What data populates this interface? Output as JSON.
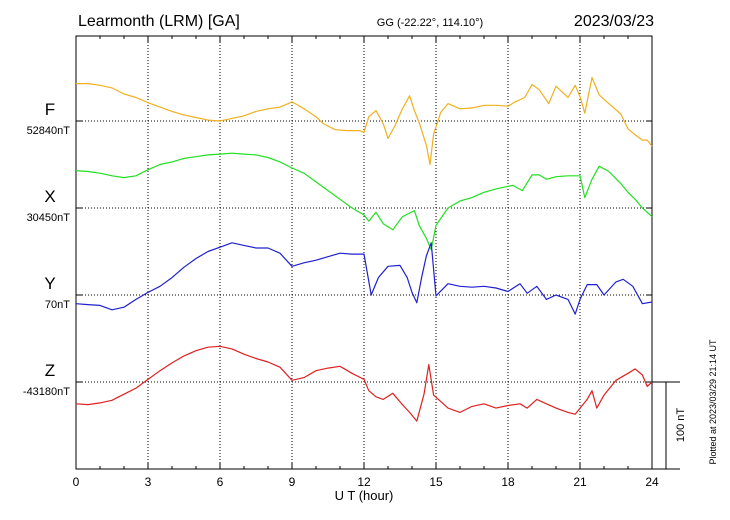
{
  "header": {
    "station": "Learmonth (LRM)  [GA]",
    "coords": "GG (-22.22°, 114.10°)",
    "date": "2023/03/23"
  },
  "footer": {
    "xlabel": "U T (hour)",
    "plotted": "Plotted at 2023/03/29 21:14 UT"
  },
  "scale": {
    "label": "100 nT"
  },
  "chart_data": {
    "type": "line",
    "xlabel": "U T (hour)",
    "xlim": [
      0,
      24
    ],
    "xticks": [
      0,
      3,
      6,
      9,
      12,
      15,
      18,
      21,
      24
    ],
    "scale_bar_nT": 100,
    "grid": true,
    "series": [
      {
        "name": "F",
        "baseline_label": "52840nT",
        "color": "#f0b020",
        "points": [
          [
            0,
            43
          ],
          [
            0.5,
            43
          ],
          [
            1,
            41
          ],
          [
            1.5,
            38
          ],
          [
            2,
            31
          ],
          [
            2.5,
            27
          ],
          [
            3,
            21
          ],
          [
            3.5,
            16
          ],
          [
            4,
            11
          ],
          [
            4.5,
            7
          ],
          [
            5,
            4
          ],
          [
            5.5,
            1
          ],
          [
            6,
            0
          ],
          [
            6.5,
            3
          ],
          [
            7,
            6
          ],
          [
            7.5,
            11
          ],
          [
            8,
            14
          ],
          [
            8.5,
            16
          ],
          [
            9,
            22
          ],
          [
            9.2,
            19
          ],
          [
            9.5,
            14
          ],
          [
            10,
            5
          ],
          [
            10.3,
            -3
          ],
          [
            10.8,
            -10
          ],
          [
            11.3,
            -11
          ],
          [
            11.8,
            -11
          ],
          [
            12,
            -13
          ],
          [
            12.2,
            5
          ],
          [
            12.5,
            12
          ],
          [
            12.8,
            -3
          ],
          [
            13,
            -20
          ],
          [
            13.3,
            -5
          ],
          [
            13.6,
            14
          ],
          [
            13.9,
            29
          ],
          [
            14.1,
            12
          ],
          [
            14.3,
            -2
          ],
          [
            14.6,
            -28
          ],
          [
            14.75,
            -50
          ],
          [
            14.9,
            -15
          ],
          [
            15.2,
            10
          ],
          [
            15.5,
            20
          ],
          [
            16,
            14
          ],
          [
            16.5,
            15
          ],
          [
            17,
            18
          ],
          [
            17.5,
            18
          ],
          [
            18,
            17
          ],
          [
            18.3,
            22
          ],
          [
            18.7,
            27
          ],
          [
            19,
            42
          ],
          [
            19.3,
            36
          ],
          [
            19.7,
            20
          ],
          [
            20,
            40
          ],
          [
            20.5,
            27
          ],
          [
            20.8,
            41
          ],
          [
            21,
            28
          ],
          [
            21.2,
            9
          ],
          [
            21.5,
            50
          ],
          [
            21.8,
            30
          ],
          [
            22.2,
            20
          ],
          [
            22.7,
            8
          ],
          [
            23,
            -9
          ],
          [
            23.3,
            -16
          ],
          [
            23.6,
            -22
          ],
          [
            23.8,
            -22
          ],
          [
            24,
            -29
          ]
        ]
      },
      {
        "name": "X",
        "baseline_label": "30450nT",
        "color": "#20e020",
        "points": [
          [
            0,
            43
          ],
          [
            0.5,
            42
          ],
          [
            1,
            40
          ],
          [
            1.5,
            37
          ],
          [
            2,
            35
          ],
          [
            2.5,
            37
          ],
          [
            3,
            44
          ],
          [
            3.5,
            50
          ],
          [
            4,
            53
          ],
          [
            4.5,
            57
          ],
          [
            5,
            59
          ],
          [
            5.5,
            61
          ],
          [
            6,
            62
          ],
          [
            6.5,
            63
          ],
          [
            7,
            62
          ],
          [
            7.5,
            61
          ],
          [
            8,
            58
          ],
          [
            8.5,
            53
          ],
          [
            9,
            46
          ],
          [
            9.5,
            40
          ],
          [
            10,
            30
          ],
          [
            10.5,
            20
          ],
          [
            11,
            10
          ],
          [
            11.5,
            0
          ],
          [
            12,
            -8
          ],
          [
            12.2,
            -15
          ],
          [
            12.5,
            -5
          ],
          [
            12.8,
            -18
          ],
          [
            13.2,
            -25
          ],
          [
            13.6,
            -10
          ],
          [
            14.1,
            -3
          ],
          [
            14.3,
            -20
          ],
          [
            14.6,
            -35
          ],
          [
            14.8,
            -48
          ],
          [
            15,
            -20
          ],
          [
            15.5,
            0
          ],
          [
            16,
            8
          ],
          [
            16.5,
            12
          ],
          [
            17,
            18
          ],
          [
            17.5,
            22
          ],
          [
            18,
            25
          ],
          [
            18.2,
            26
          ],
          [
            18.6,
            20
          ],
          [
            19,
            38
          ],
          [
            19.3,
            38
          ],
          [
            19.6,
            33
          ],
          [
            20,
            36
          ],
          [
            20.5,
            37
          ],
          [
            21,
            37
          ],
          [
            21.2,
            12
          ],
          [
            21.5,
            33
          ],
          [
            21.8,
            48
          ],
          [
            22.2,
            42
          ],
          [
            22.7,
            28
          ],
          [
            23,
            18
          ],
          [
            23.3,
            10
          ],
          [
            23.6,
            0
          ],
          [
            23.8,
            -5
          ],
          [
            24,
            -10
          ]
        ]
      },
      {
        "name": "Y",
        "baseline_label": "70nT",
        "color": "#2020d0",
        "points": [
          [
            0,
            -10
          ],
          [
            0.5,
            -11
          ],
          [
            1,
            -12
          ],
          [
            1.5,
            -17
          ],
          [
            2,
            -14
          ],
          [
            2.5,
            -5
          ],
          [
            3,
            3
          ],
          [
            3.5,
            10
          ],
          [
            4,
            20
          ],
          [
            4.5,
            32
          ],
          [
            5,
            42
          ],
          [
            5.5,
            50
          ],
          [
            6,
            55
          ],
          [
            6.5,
            60
          ],
          [
            7,
            57
          ],
          [
            7.5,
            54
          ],
          [
            8,
            54
          ],
          [
            8.5,
            48
          ],
          [
            9,
            33
          ],
          [
            9.5,
            37
          ],
          [
            10,
            40
          ],
          [
            10.5,
            44
          ],
          [
            11,
            48
          ],
          [
            11.5,
            47
          ],
          [
            12,
            47
          ],
          [
            12.3,
            0
          ],
          [
            12.6,
            20
          ],
          [
            13,
            33
          ],
          [
            13.5,
            34
          ],
          [
            13.8,
            20
          ],
          [
            14,
            3
          ],
          [
            14.2,
            -9
          ],
          [
            14.4,
            20
          ],
          [
            14.6,
            45
          ],
          [
            14.8,
            60
          ],
          [
            15,
            -1
          ],
          [
            15.5,
            13
          ],
          [
            16,
            10
          ],
          [
            16.5,
            9
          ],
          [
            17,
            10
          ],
          [
            17.5,
            8
          ],
          [
            18,
            4
          ],
          [
            18.5,
            13
          ],
          [
            18.8,
            2
          ],
          [
            19.2,
            10
          ],
          [
            19.6,
            -5
          ],
          [
            20,
            0
          ],
          [
            20.5,
            -5
          ],
          [
            20.8,
            -22
          ],
          [
            21,
            -5
          ],
          [
            21.3,
            12
          ],
          [
            21.7,
            12
          ],
          [
            22,
            0
          ],
          [
            22.5,
            15
          ],
          [
            22.8,
            18
          ],
          [
            23.2,
            10
          ],
          [
            23.6,
            -10
          ],
          [
            24,
            -8
          ]
        ]
      },
      {
        "name": "Z",
        "baseline_label": "-43180nT",
        "color": "#e02020",
        "points": [
          [
            0,
            -25
          ],
          [
            0.5,
            -26
          ],
          [
            1,
            -24
          ],
          [
            1.5,
            -21
          ],
          [
            2,
            -14
          ],
          [
            2.5,
            -7
          ],
          [
            3,
            3
          ],
          [
            3.5,
            13
          ],
          [
            4,
            22
          ],
          [
            4.5,
            30
          ],
          [
            5,
            36
          ],
          [
            5.5,
            40
          ],
          [
            6,
            41
          ],
          [
            6.5,
            38
          ],
          [
            7,
            32
          ],
          [
            7.5,
            27
          ],
          [
            8,
            23
          ],
          [
            8.5,
            17
          ],
          [
            9,
            2
          ],
          [
            9.5,
            5
          ],
          [
            10,
            13
          ],
          [
            10.5,
            16
          ],
          [
            11,
            18
          ],
          [
            11.5,
            10
          ],
          [
            12,
            3
          ],
          [
            12.2,
            -10
          ],
          [
            12.5,
            -17
          ],
          [
            12.8,
            -20
          ],
          [
            13.2,
            -13
          ],
          [
            13.6,
            -26
          ],
          [
            13.9,
            -35
          ],
          [
            14.2,
            -45
          ],
          [
            14.5,
            -14
          ],
          [
            14.7,
            20
          ],
          [
            14.9,
            -15
          ],
          [
            15.5,
            -30
          ],
          [
            16,
            -35
          ],
          [
            16.5,
            -28
          ],
          [
            17,
            -25
          ],
          [
            17.5,
            -30
          ],
          [
            18,
            -27
          ],
          [
            18.5,
            -25
          ],
          [
            18.8,
            -30
          ],
          [
            19.2,
            -20
          ],
          [
            19.6,
            -25
          ],
          [
            20,
            -30
          ],
          [
            20.5,
            -35
          ],
          [
            20.8,
            -37
          ],
          [
            21,
            -30
          ],
          [
            21.3,
            -20
          ],
          [
            21.5,
            -10
          ],
          [
            21.7,
            -30
          ],
          [
            22,
            -15
          ],
          [
            22.5,
            2
          ],
          [
            23,
            10
          ],
          [
            23.3,
            15
          ],
          [
            23.6,
            8
          ],
          [
            23.8,
            -5
          ],
          [
            24,
            0
          ]
        ]
      }
    ]
  }
}
